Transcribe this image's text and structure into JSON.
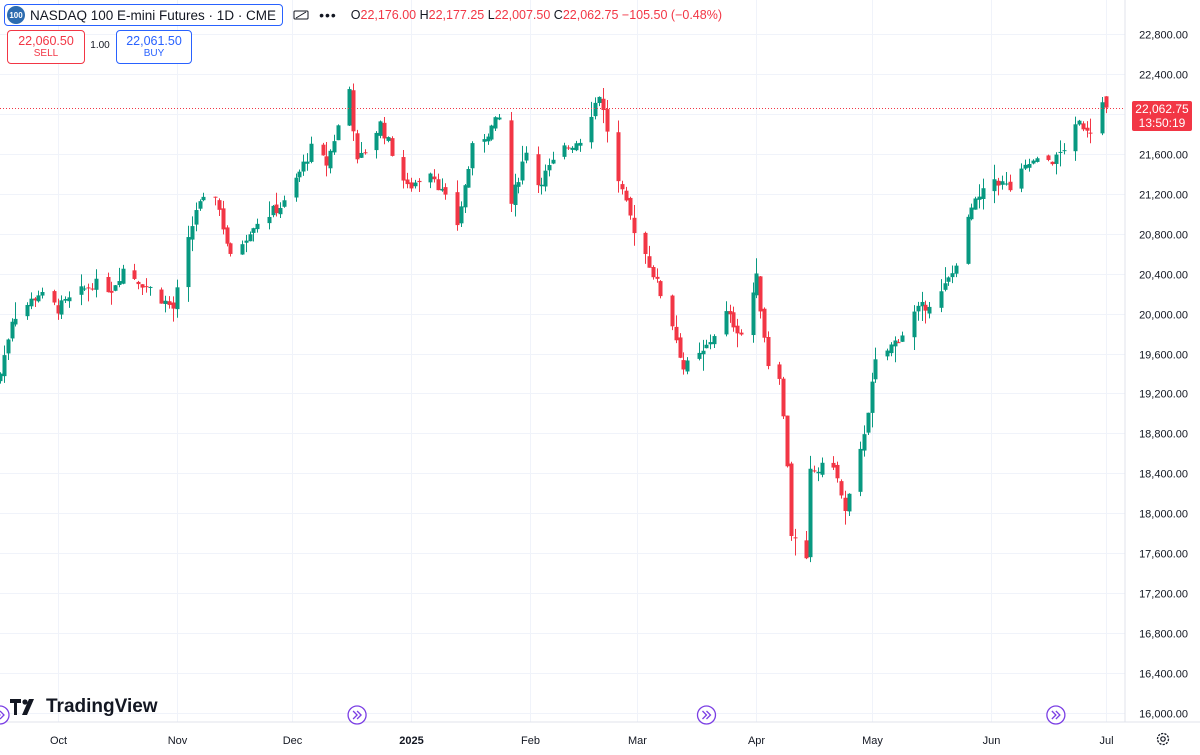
{
  "legend": {
    "symbol_logo": "100",
    "title": "NASDAQ 100 E-mini Futures · 1D · CME",
    "ohlc": {
      "o_label": "O",
      "o_value": "22,176.00",
      "h_label": "H",
      "h_value": "22,177.25",
      "l_label": "L",
      "l_value": "22,007.50",
      "c_label": "C",
      "c_value": "22,062.75",
      "change": "−105.50 (−0.48%)"
    }
  },
  "trade": {
    "sell_price": "22,060.50",
    "sell_label": "SELL",
    "spread": "1.00",
    "buy_price": "22,061.50",
    "buy_label": "BUY"
  },
  "last_price": {
    "value": "22,062.75",
    "countdown": "13:50:19"
  },
  "brand": "TradingView",
  "colors": {
    "up": "#089981",
    "down": "#f23645",
    "accent": "#2962ff",
    "event": "#7b3fe4"
  },
  "chart_data": {
    "type": "candlestick",
    "symbol": "NASDAQ 100 E-mini Futures",
    "interval": "1D",
    "exchange": "CME",
    "last_close": 22062.75,
    "y_axis": {
      "ticks": [
        22800,
        22400,
        22000,
        21600,
        21200,
        20800,
        20400,
        20000,
        19600,
        19200,
        18800,
        18400,
        18000,
        17600,
        17200,
        16800,
        16400,
        16000
      ],
      "tick_labels": [
        "22,800.00",
        "22,400.00",
        "22,000.00",
        "21,600.00",
        "21,200.00",
        "20,800.00",
        "20,400.00",
        "20,000.00",
        "19,600.00",
        "19,200.00",
        "18,800.00",
        "18,400.00",
        "18,000.00",
        "17,600.00",
        "17,200.00",
        "16,800.00",
        "16,400.00",
        "16,000.00"
      ],
      "ylim": [
        15980,
        23000
      ],
      "position": "right"
    },
    "x_axis": {
      "labels": [
        {
          "date": "2024-10-01",
          "text": "Oct"
        },
        {
          "date": "2024-11-01",
          "text": "Nov"
        },
        {
          "date": "2024-12-01",
          "text": "Dec"
        },
        {
          "date": "2025-01-01",
          "text": "2025"
        },
        {
          "date": "2025-02-01",
          "text": "Feb"
        },
        {
          "date": "2025-03-01",
          "text": "Mar"
        },
        {
          "date": "2025-04-01",
          "text": "Apr"
        },
        {
          "date": "2025-05-01",
          "text": "May"
        },
        {
          "date": "2025-06-01",
          "text": "Jun"
        },
        {
          "date": "2025-07-01",
          "text": "Jul"
        }
      ],
      "start_date": "2024-09-16",
      "end_date": "2025-07-06"
    },
    "grid": true,
    "event_markers": [
      "2024-09-16",
      "2024-12-18",
      "2025-03-19",
      "2025-06-18"
    ],
    "anchors": [
      [
        "2024-09-16",
        19400
      ],
      [
        "2024-09-19",
        19950
      ],
      [
        "2024-09-26",
        20200
      ],
      [
        "2024-10-01",
        20050
      ],
      [
        "2024-10-10",
        20300
      ],
      [
        "2024-10-15",
        20250
      ],
      [
        "2024-10-18",
        20450
      ],
      [
        "2024-10-25",
        20250
      ],
      [
        "2024-10-31",
        20050
      ],
      [
        "2024-11-06",
        21050
      ],
      [
        "2024-11-11",
        21200
      ],
      [
        "2024-11-15",
        20550
      ],
      [
        "2024-11-21",
        20900
      ],
      [
        "2024-11-29",
        21100
      ],
      [
        "2024-12-06",
        21650
      ],
      [
        "2024-12-10",
        21500
      ],
      [
        "2024-12-16",
        22250
      ],
      [
        "2024-12-18",
        21500
      ],
      [
        "2024-12-24",
        21900
      ],
      [
        "2024-12-31",
        21250
      ],
      [
        "2025-01-06",
        21450
      ],
      [
        "2025-01-13",
        20900
      ],
      [
        "2025-01-17",
        21650
      ],
      [
        "2025-01-24",
        21950
      ],
      [
        "2025-01-27",
        21100
      ],
      [
        "2025-01-31",
        21650
      ],
      [
        "2025-02-03",
        21300
      ],
      [
        "2025-02-10",
        21650
      ],
      [
        "2025-02-14",
        21750
      ],
      [
        "2025-02-19",
        22200
      ],
      [
        "2025-02-24",
        21300
      ],
      [
        "2025-02-28",
        20850
      ],
      [
        "2025-03-03",
        20600
      ],
      [
        "2025-03-10",
        19900
      ],
      [
        "2025-03-13",
        19450
      ],
      [
        "2025-03-18",
        19600
      ],
      [
        "2025-03-24",
        20000
      ],
      [
        "2025-03-28",
        19800
      ],
      [
        "2025-04-01",
        20350
      ],
      [
        "2025-04-04",
        19500
      ],
      [
        "2025-04-07",
        19400
      ],
      [
        "2025-04-09",
        18500
      ],
      [
        "2025-04-10",
        17800
      ],
      [
        "2025-04-14",
        17500
      ],
      [
        "2025-04-15",
        18400
      ],
      [
        "2025-04-21",
        18500
      ],
      [
        "2025-04-24",
        18000
      ],
      [
        "2025-04-28",
        18600
      ],
      [
        "2025-05-02",
        19500
      ],
      [
        "2025-05-09",
        19800
      ],
      [
        "2025-05-12",
        20000
      ],
      [
        "2025-05-19",
        20200
      ],
      [
        "2025-05-22",
        20400
      ],
      [
        "2025-05-27",
        21050
      ],
      [
        "2025-06-02",
        21350
      ],
      [
        "2025-06-06",
        21250
      ],
      [
        "2025-06-11",
        21500
      ],
      [
        "2025-06-18",
        21550
      ],
      [
        "2025-06-24",
        21900
      ],
      [
        "2025-06-27",
        21850
      ],
      [
        "2025-06-30",
        22176
      ]
    ],
    "last_candle": {
      "date": "2025-07-01",
      "open": 22176.0,
      "high": 22177.25,
      "low": 22007.5,
      "close": 22062.75
    }
  }
}
